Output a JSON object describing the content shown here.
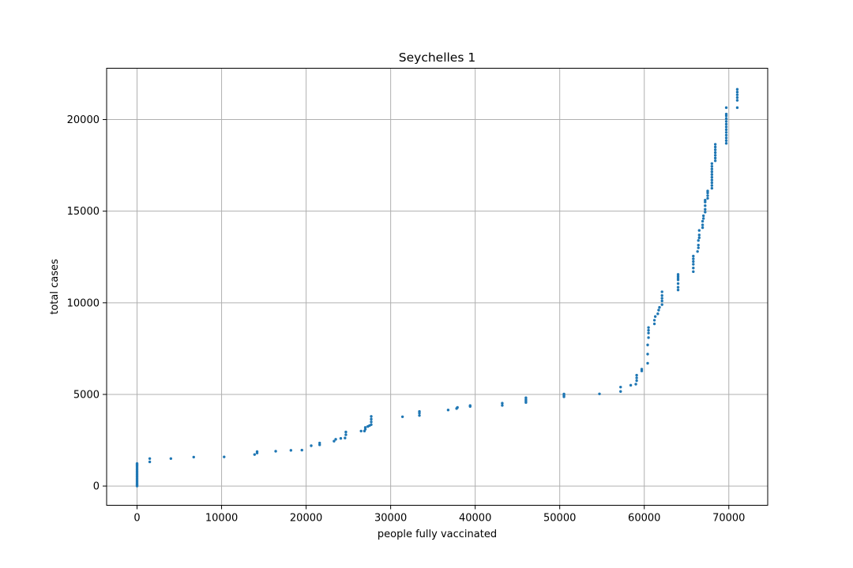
{
  "chart_data": {
    "type": "scatter",
    "title": "Seychelles 1",
    "xlabel": "people fully vaccinated",
    "ylabel": "total cases",
    "xlim": [
      -3600,
      74600
    ],
    "ylim": [
      -1050,
      22800
    ],
    "xticks": [
      0,
      10000,
      20000,
      30000,
      40000,
      50000,
      60000,
      70000
    ],
    "yticks": [
      0,
      5000,
      10000,
      15000,
      20000
    ],
    "grid": true,
    "marker_color": "#1f77b4",
    "points": [
      [
        0,
        0
      ],
      [
        0,
        60
      ],
      [
        0,
        120
      ],
      [
        0,
        180
      ],
      [
        0,
        250
      ],
      [
        0,
        320
      ],
      [
        0,
        400
      ],
      [
        0,
        480
      ],
      [
        0,
        560
      ],
      [
        0,
        640
      ],
      [
        0,
        720
      ],
      [
        0,
        800
      ],
      [
        0,
        880
      ],
      [
        0,
        960
      ],
      [
        0,
        1040
      ],
      [
        0,
        1120
      ],
      [
        0,
        1180
      ],
      [
        0,
        1230
      ],
      [
        1500,
        1320
      ],
      [
        1500,
        1500
      ],
      [
        4000,
        1500
      ],
      [
        6700,
        1580
      ],
      [
        10300,
        1590
      ],
      [
        13900,
        1720
      ],
      [
        14200,
        1800
      ],
      [
        14200,
        1880
      ],
      [
        16400,
        1900
      ],
      [
        18200,
        1950
      ],
      [
        19500,
        1960
      ],
      [
        20600,
        2200
      ],
      [
        21600,
        2250
      ],
      [
        21600,
        2350
      ],
      [
        23300,
        2450
      ],
      [
        23500,
        2550
      ],
      [
        24100,
        2600
      ],
      [
        24600,
        2620
      ],
      [
        24700,
        2800
      ],
      [
        24700,
        2950
      ],
      [
        26500,
        3000
      ],
      [
        26900,
        3000
      ],
      [
        27000,
        3100
      ],
      [
        27000,
        3200
      ],
      [
        27300,
        3250
      ],
      [
        27500,
        3300
      ],
      [
        27700,
        3350
      ],
      [
        27700,
        3500
      ],
      [
        27700,
        3650
      ],
      [
        27700,
        3800
      ],
      [
        31400,
        3780
      ],
      [
        33400,
        3850
      ],
      [
        33400,
        3980
      ],
      [
        33400,
        4070
      ],
      [
        36800,
        4150
      ],
      [
        37800,
        4230
      ],
      [
        37900,
        4290
      ],
      [
        39400,
        4340
      ],
      [
        39400,
        4390
      ],
      [
        43200,
        4400
      ],
      [
        43200,
        4520
      ],
      [
        46000,
        4560
      ],
      [
        46000,
        4640
      ],
      [
        46000,
        4720
      ],
      [
        46000,
        4820
      ],
      [
        50500,
        4870
      ],
      [
        50500,
        4950
      ],
      [
        50500,
        5020
      ],
      [
        54700,
        5030
      ],
      [
        57200,
        5160
      ],
      [
        57200,
        5400
      ],
      [
        58400,
        5500
      ],
      [
        59000,
        5560
      ],
      [
        59100,
        5750
      ],
      [
        59100,
        5900
      ],
      [
        59100,
        6050
      ],
      [
        59700,
        6280
      ],
      [
        59700,
        6380
      ],
      [
        60400,
        6700
      ],
      [
        60400,
        7200
      ],
      [
        60400,
        7700
      ],
      [
        60500,
        8100
      ],
      [
        60500,
        8350
      ],
      [
        60500,
        8500
      ],
      [
        60500,
        8650
      ],
      [
        61200,
        8850
      ],
      [
        61200,
        9050
      ],
      [
        61300,
        9250
      ],
      [
        61600,
        9400
      ],
      [
        61700,
        9600
      ],
      [
        61800,
        9750
      ],
      [
        62100,
        9900
      ],
      [
        62100,
        10100
      ],
      [
        62100,
        10250
      ],
      [
        62100,
        10400
      ],
      [
        62100,
        10600
      ],
      [
        64000,
        10700
      ],
      [
        64000,
        10850
      ],
      [
        64000,
        11050
      ],
      [
        64000,
        11250
      ],
      [
        64000,
        11350
      ],
      [
        64000,
        11450
      ],
      [
        64000,
        11550
      ],
      [
        65800,
        11700
      ],
      [
        65800,
        11900
      ],
      [
        65800,
        12100
      ],
      [
        65800,
        12250
      ],
      [
        65800,
        12400
      ],
      [
        65800,
        12550
      ],
      [
        66300,
        12800
      ],
      [
        66400,
        13000
      ],
      [
        66400,
        13150
      ],
      [
        66400,
        13400
      ],
      [
        66500,
        13550
      ],
      [
        66500,
        13700
      ],
      [
        66500,
        13950
      ],
      [
        66900,
        14100
      ],
      [
        66900,
        14250
      ],
      [
        66900,
        14450
      ],
      [
        67000,
        14600
      ],
      [
        67000,
        14750
      ],
      [
        67200,
        14950
      ],
      [
        67200,
        15100
      ],
      [
        67200,
        15300
      ],
      [
        67200,
        15500
      ],
      [
        67200,
        15600
      ],
      [
        67500,
        15700
      ],
      [
        67500,
        15850
      ],
      [
        67500,
        16000
      ],
      [
        67500,
        16100
      ],
      [
        68000,
        16250
      ],
      [
        68000,
        16400
      ],
      [
        68000,
        16550
      ],
      [
        68000,
        16700
      ],
      [
        68000,
        16850
      ],
      [
        68000,
        17000
      ],
      [
        68000,
        17150
      ],
      [
        68000,
        17300
      ],
      [
        68000,
        17450
      ],
      [
        68000,
        17600
      ],
      [
        68400,
        17750
      ],
      [
        68400,
        17900
      ],
      [
        68400,
        18050
      ],
      [
        68400,
        18200
      ],
      [
        68400,
        18350
      ],
      [
        68400,
        18500
      ],
      [
        68400,
        18650
      ],
      [
        69700,
        18700
      ],
      [
        69700,
        18850
      ],
      [
        69700,
        19000
      ],
      [
        69700,
        19150
      ],
      [
        69700,
        19300
      ],
      [
        69700,
        19450
      ],
      [
        69700,
        19600
      ],
      [
        69700,
        19750
      ],
      [
        69700,
        19900
      ],
      [
        69700,
        20050
      ],
      [
        69700,
        20200
      ],
      [
        69700,
        20300
      ],
      [
        69700,
        20650
      ],
      [
        71000,
        20650
      ],
      [
        71000,
        21050
      ],
      [
        71000,
        21200
      ],
      [
        71000,
        21350
      ],
      [
        71000,
        21500
      ],
      [
        71000,
        21650
      ]
    ]
  }
}
